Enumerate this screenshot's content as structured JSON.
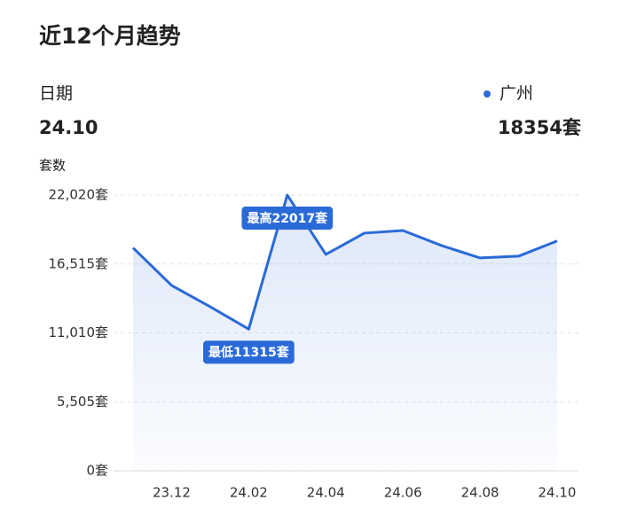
{
  "chart_data": {
    "type": "line",
    "title": "近12个月趋势",
    "date_label": "日期",
    "date": "24.10",
    "current_value": "18354套",
    "ylabel": "套数",
    "categories": [
      null,
      "23.12",
      null,
      "24.02",
      null,
      "24.04",
      null,
      "24.06",
      null,
      "24.08",
      null,
      "24.10"
    ],
    "series": [
      {
        "name": "广州",
        "color": "#2a6ad8",
        "values": [
          17800,
          14800,
          13100,
          11315,
          22017,
          17280,
          18980,
          19190,
          17990,
          17000,
          17140,
          18354
        ],
        "value_labels": [
          null,
          null,
          null,
          "最低11315套",
          "最高22017套",
          null,
          null,
          null,
          null,
          null,
          null,
          null
        ]
      }
    ],
    "ylim": [
      0,
      22020
    ],
    "yticks": [
      {
        "value": 0,
        "label": "0套"
      },
      {
        "value": 5505,
        "label": "5,505套"
      },
      {
        "value": 11010,
        "label": "11,010套"
      },
      {
        "value": 16515,
        "label": "16,515套"
      },
      {
        "value": 22020,
        "label": "22,020套"
      }
    ],
    "grid": true
  }
}
